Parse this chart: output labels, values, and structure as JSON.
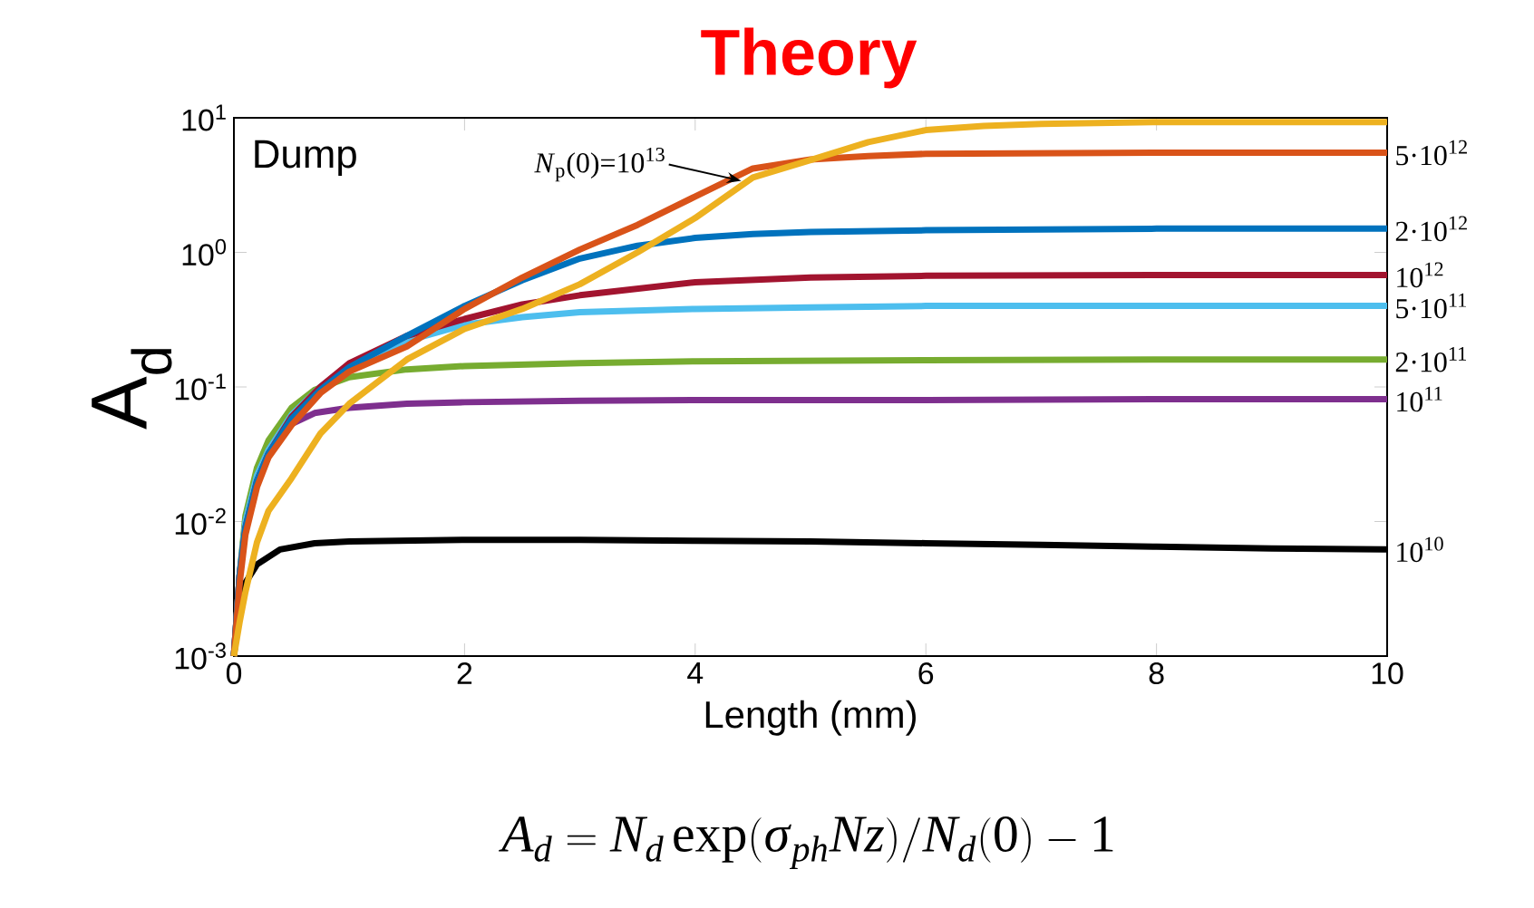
{
  "chart_data": {
    "type": "line",
    "title": "Theory",
    "xlabel": "Length (mm)",
    "ylabel": "A$_{d}$",
    "log": "y",
    "xlim": [
      0,
      10
    ],
    "ylim": [
      0.001,
      10
    ],
    "xticks": [
      0,
      2,
      4,
      6,
      8,
      10
    ],
    "yticks": [
      {
        "value": 0.001,
        "label": "10$^{-3}$"
      },
      {
        "value": 0.01,
        "label": "10$^{-2}$"
      },
      {
        "value": 0.1,
        "label": "10$^{-1}$"
      },
      {
        "value": 1,
        "label": "10$^{0}$"
      },
      {
        "value": 10,
        "label": "10$^{1}$"
      }
    ],
    "annotations": [
      "Dump",
      "A_d = N_d \\exp(\\sigma_{ph} N z)/N_d(0) - 1",
      {
        "text": "*N*$_{p}$(0)=10$^{13}$",
        "x": 4.4,
        "y": 3.4
      }
    ],
    "series": [
      {
        "name": "10$^{10}$",
        "color": "#000000",
        "x": [
          0,
          0.05,
          0.1,
          0.2,
          0.4,
          0.7,
          1,
          2,
          3,
          4,
          5,
          6,
          7,
          8,
          9,
          10
        ],
        "values": [
          0.001,
          0.0025,
          0.0035,
          0.0048,
          0.0062,
          0.0069,
          0.0071,
          0.0073,
          0.0073,
          0.0072,
          0.0071,
          0.0069,
          0.0067,
          0.0065,
          0.0063,
          0.0062
        ]
      },
      {
        "name": "10$^{11}$",
        "color": "#7e2f8e",
        "x": [
          0,
          0.05,
          0.1,
          0.2,
          0.3,
          0.5,
          0.7,
          1,
          1.5,
          2,
          3,
          4,
          6,
          8,
          10
        ],
        "values": [
          0.001,
          0.004,
          0.01,
          0.022,
          0.035,
          0.053,
          0.064,
          0.07,
          0.075,
          0.077,
          0.079,
          0.08,
          0.08,
          0.081,
          0.081
        ]
      },
      {
        "name": "2·10$^{11}$",
        "color": "#77ac30",
        "x": [
          0,
          0.05,
          0.1,
          0.2,
          0.3,
          0.5,
          0.7,
          1,
          1.5,
          2,
          3,
          4,
          6,
          8,
          10
        ],
        "values": [
          0.001,
          0.004,
          0.011,
          0.025,
          0.04,
          0.07,
          0.095,
          0.118,
          0.135,
          0.143,
          0.15,
          0.155,
          0.158,
          0.16,
          0.16
        ]
      },
      {
        "name": "5·10$^{11}$",
        "color": "#4dbeee",
        "x": [
          0,
          0.05,
          0.1,
          0.2,
          0.3,
          0.5,
          0.75,
          1,
          1.5,
          2,
          2.5,
          3,
          4,
          5,
          6,
          8,
          10
        ],
        "values": [
          0.001,
          0.004,
          0.01,
          0.022,
          0.034,
          0.062,
          0.1,
          0.145,
          0.22,
          0.29,
          0.33,
          0.36,
          0.38,
          0.39,
          0.4,
          0.4,
          0.4
        ]
      },
      {
        "name": "10$^{12}$",
        "color": "#a2142f",
        "x": [
          0,
          0.05,
          0.1,
          0.2,
          0.3,
          0.5,
          0.75,
          1,
          1.5,
          2,
          2.5,
          3,
          4,
          5,
          6,
          8,
          10
        ],
        "values": [
          0.001,
          0.004,
          0.009,
          0.02,
          0.032,
          0.06,
          0.1,
          0.15,
          0.24,
          0.32,
          0.41,
          0.48,
          0.6,
          0.65,
          0.67,
          0.68,
          0.68
        ]
      },
      {
        "name": "2·10$^{12}$",
        "color": "#0072bd",
        "x": [
          0,
          0.05,
          0.1,
          0.2,
          0.3,
          0.5,
          0.75,
          1,
          1.5,
          2,
          2.5,
          3,
          3.5,
          4,
          4.5,
          5,
          6,
          8,
          10
        ],
        "values": [
          0.001,
          0.004,
          0.009,
          0.02,
          0.032,
          0.058,
          0.095,
          0.14,
          0.24,
          0.4,
          0.62,
          0.9,
          1.12,
          1.28,
          1.37,
          1.42,
          1.46,
          1.5,
          1.5
        ]
      },
      {
        "name": "5·10$^{12}$",
        "color": "#d95319",
        "x": [
          0,
          0.05,
          0.1,
          0.2,
          0.3,
          0.5,
          0.75,
          1,
          1.5,
          2,
          2.5,
          3,
          3.5,
          4,
          4.5,
          5,
          5.5,
          6,
          8,
          10
        ],
        "values": [
          0.001,
          0.0035,
          0.008,
          0.018,
          0.03,
          0.052,
          0.09,
          0.13,
          0.2,
          0.38,
          0.65,
          1.05,
          1.6,
          2.6,
          4.2,
          4.9,
          5.2,
          5.4,
          5.5,
          5.5
        ]
      },
      {
        "color": "#edb120",
        "x": [
          0,
          0.05,
          0.1,
          0.2,
          0.3,
          0.5,
          0.75,
          1,
          1.5,
          2,
          2.5,
          3,
          3.5,
          4,
          4.5,
          5,
          5.5,
          6,
          6.5,
          7,
          8,
          10
        ],
        "values": [
          0.001,
          0.0018,
          0.003,
          0.007,
          0.012,
          0.021,
          0.045,
          0.075,
          0.16,
          0.27,
          0.38,
          0.58,
          1.0,
          1.8,
          3.6,
          4.85,
          6.6,
          8.1,
          8.7,
          9.0,
          9.3,
          9.3
        ]
      }
    ]
  }
}
